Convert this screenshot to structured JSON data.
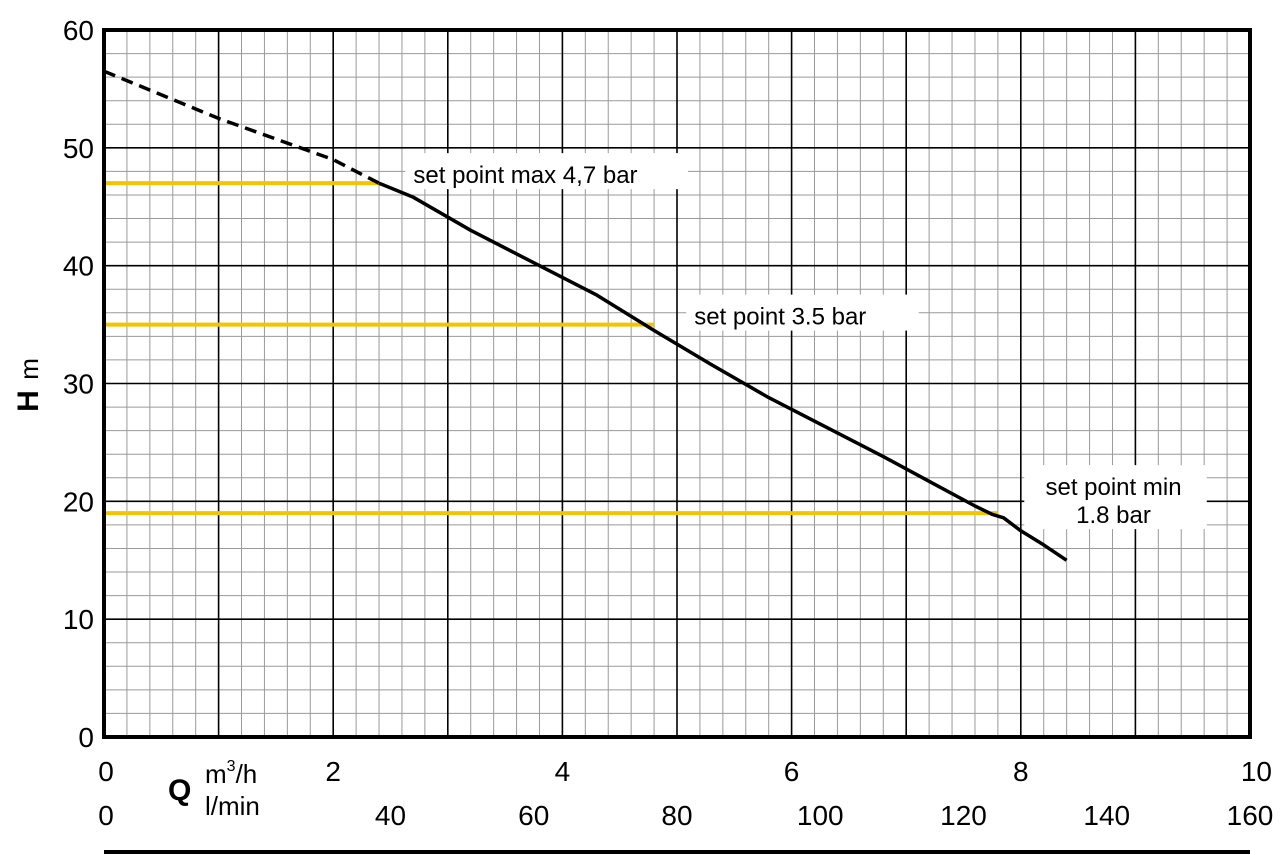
{
  "chart_data": {
    "type": "line",
    "ylabel": "H",
    "yunit": "m",
    "xlabel_symbol": "Q",
    "xunit_primary": "m",
    "xunit_primary_sup": "3",
    "xunit_primary_suffix": "/h",
    "xunit_secondary": "l/min",
    "xlim": [
      0,
      10
    ],
    "ylim": [
      0,
      60
    ],
    "x_ticks": [
      "0",
      "2",
      "4",
      "6",
      "8",
      "10"
    ],
    "x_ticks_values": [
      0,
      2,
      4,
      6,
      8,
      10
    ],
    "y_ticks": [
      "0",
      "10",
      "20",
      "30",
      "40",
      "50",
      "60"
    ],
    "y_ticks_values": [
      0,
      10,
      20,
      30,
      40,
      50,
      60
    ],
    "x2_ticks": [
      "0",
      "40",
      "60",
      "80",
      "100",
      "120",
      "140",
      "160"
    ],
    "x2_ticks_values": [
      0,
      40,
      60,
      80,
      100,
      120,
      140,
      160
    ],
    "grid": true,
    "series": [
      {
        "style": "dashed",
        "color": "#000000",
        "x": [
          0,
          1.0,
          2.0,
          2.4
        ],
        "y": [
          56.5,
          52.5,
          49.0,
          47.0
        ]
      },
      {
        "style": "solid",
        "color": "#000000",
        "x": [
          2.4,
          2.7,
          3.2,
          3.8,
          4.3,
          4.8,
          5.3,
          5.8,
          6.3,
          6.8,
          7.2,
          7.6,
          7.75,
          7.85,
          8.0,
          8.2,
          8.4
        ],
        "y": [
          47.0,
          45.8,
          43.0,
          40.0,
          37.5,
          34.5,
          31.6,
          28.8,
          26.3,
          23.8,
          21.7,
          19.6,
          18.9,
          18.6,
          17.5,
          16.3,
          15.0
        ]
      }
    ],
    "set_points": [
      {
        "label": "set point max 4,7 bar",
        "y": 47,
        "x_end": 2.4,
        "label_x": 2.7,
        "label_lines": [
          "set point max 4,7 bar"
        ]
      },
      {
        "label": "set point 3.5 bar",
        "y": 35,
        "x_end": 4.8,
        "label_x": 5.15,
        "label_lines": [
          "set point 3.5 bar"
        ]
      },
      {
        "label": "set point min 1.8 bar",
        "y": 19,
        "x_end": 7.8,
        "label_x": 8.1,
        "label_lines": [
          "set point min",
          "1.8 bar"
        ]
      }
    ],
    "set_point_color": "#f5c400"
  }
}
